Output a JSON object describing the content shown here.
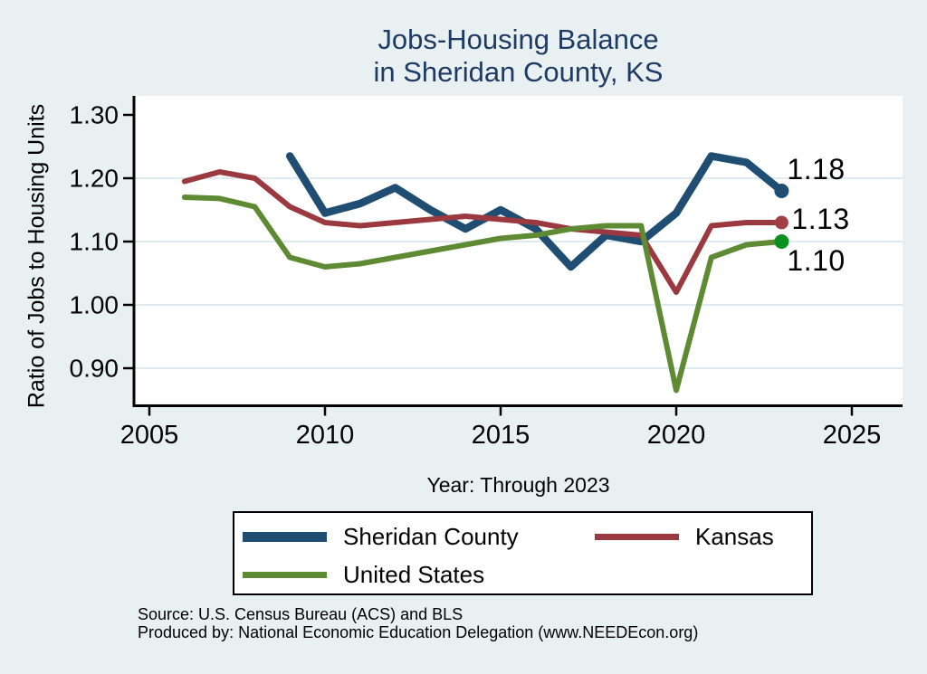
{
  "title": {
    "line1": "Jobs-Housing Balance",
    "line2": "in Sheridan County, KS",
    "color": "#1f3b63"
  },
  "axes": {
    "y_ticks": [
      "1.30",
      "1.20",
      "1.10",
      "1.00",
      "0.90"
    ],
    "x_ticks": [
      "2005",
      "2010",
      "2015",
      "2020",
      "2025"
    ]
  },
  "chart_data": {
    "type": "line",
    "title": "Jobs-Housing Balance in Sheridan County, KS",
    "xlabel": "Year: Through 2023",
    "ylabel": "Ratio of Jobs to Housing Units",
    "xlim": [
      2004.6,
      2026.4
    ],
    "ylim": [
      0.845,
      1.33
    ],
    "x_tick_values": [
      2005,
      2010,
      2015,
      2020,
      2025
    ],
    "y_tick_values": [
      1.3,
      1.2,
      1.1,
      1.0,
      0.9
    ],
    "grid_values": [
      1.2,
      1.1,
      1.0,
      0.9
    ],
    "grid": "horizontal",
    "gridline_color": "#dfe9f0",
    "plot_background": "#ffffff",
    "page_background": "#e9f0f2",
    "legend_position": "bottom",
    "series": [
      {
        "name": "Sheridan County",
        "color": "#204e72",
        "marker_color": "#204e72",
        "end_label": "1.18",
        "years": [
          2009,
          2010,
          2011,
          2012,
          2013,
          2014,
          2015,
          2016,
          2017,
          2018,
          2019,
          2020,
          2021,
          2022,
          2023
        ],
        "values": [
          1.235,
          1.145,
          1.16,
          1.185,
          1.15,
          1.12,
          1.15,
          1.12,
          1.06,
          1.11,
          1.1,
          1.145,
          1.235,
          1.225,
          1.18
        ]
      },
      {
        "name": "Kansas",
        "color": "#9a3a40",
        "marker_color": "#a33e44",
        "end_label": "1.13",
        "years": [
          2006,
          2007,
          2008,
          2009,
          2010,
          2011,
          2012,
          2013,
          2014,
          2015,
          2016,
          2017,
          2018,
          2019,
          2020,
          2021,
          2022,
          2023
        ],
        "values": [
          1.195,
          1.21,
          1.2,
          1.155,
          1.13,
          1.125,
          1.13,
          1.135,
          1.14,
          1.135,
          1.13,
          1.12,
          1.115,
          1.11,
          1.02,
          1.125,
          1.13,
          1.13
        ]
      },
      {
        "name": "United States",
        "color": "#5e8a33",
        "marker_color": "#0a9121",
        "end_label": "1.10",
        "years": [
          2006,
          2007,
          2008,
          2009,
          2010,
          2011,
          2012,
          2013,
          2014,
          2015,
          2016,
          2017,
          2018,
          2019,
          2020,
          2021,
          2022,
          2023
        ],
        "values": [
          1.17,
          1.168,
          1.155,
          1.075,
          1.06,
          1.065,
          1.075,
          1.085,
          1.095,
          1.105,
          1.11,
          1.12,
          1.125,
          1.125,
          0.865,
          1.075,
          1.095,
          1.1
        ]
      }
    ]
  },
  "footer": {
    "source": "Source: U.S. Census Bureau (ACS) and BLS",
    "produced_by": "Produced by: National Economic Education Delegation (www.NEEDEcon.org)"
  }
}
